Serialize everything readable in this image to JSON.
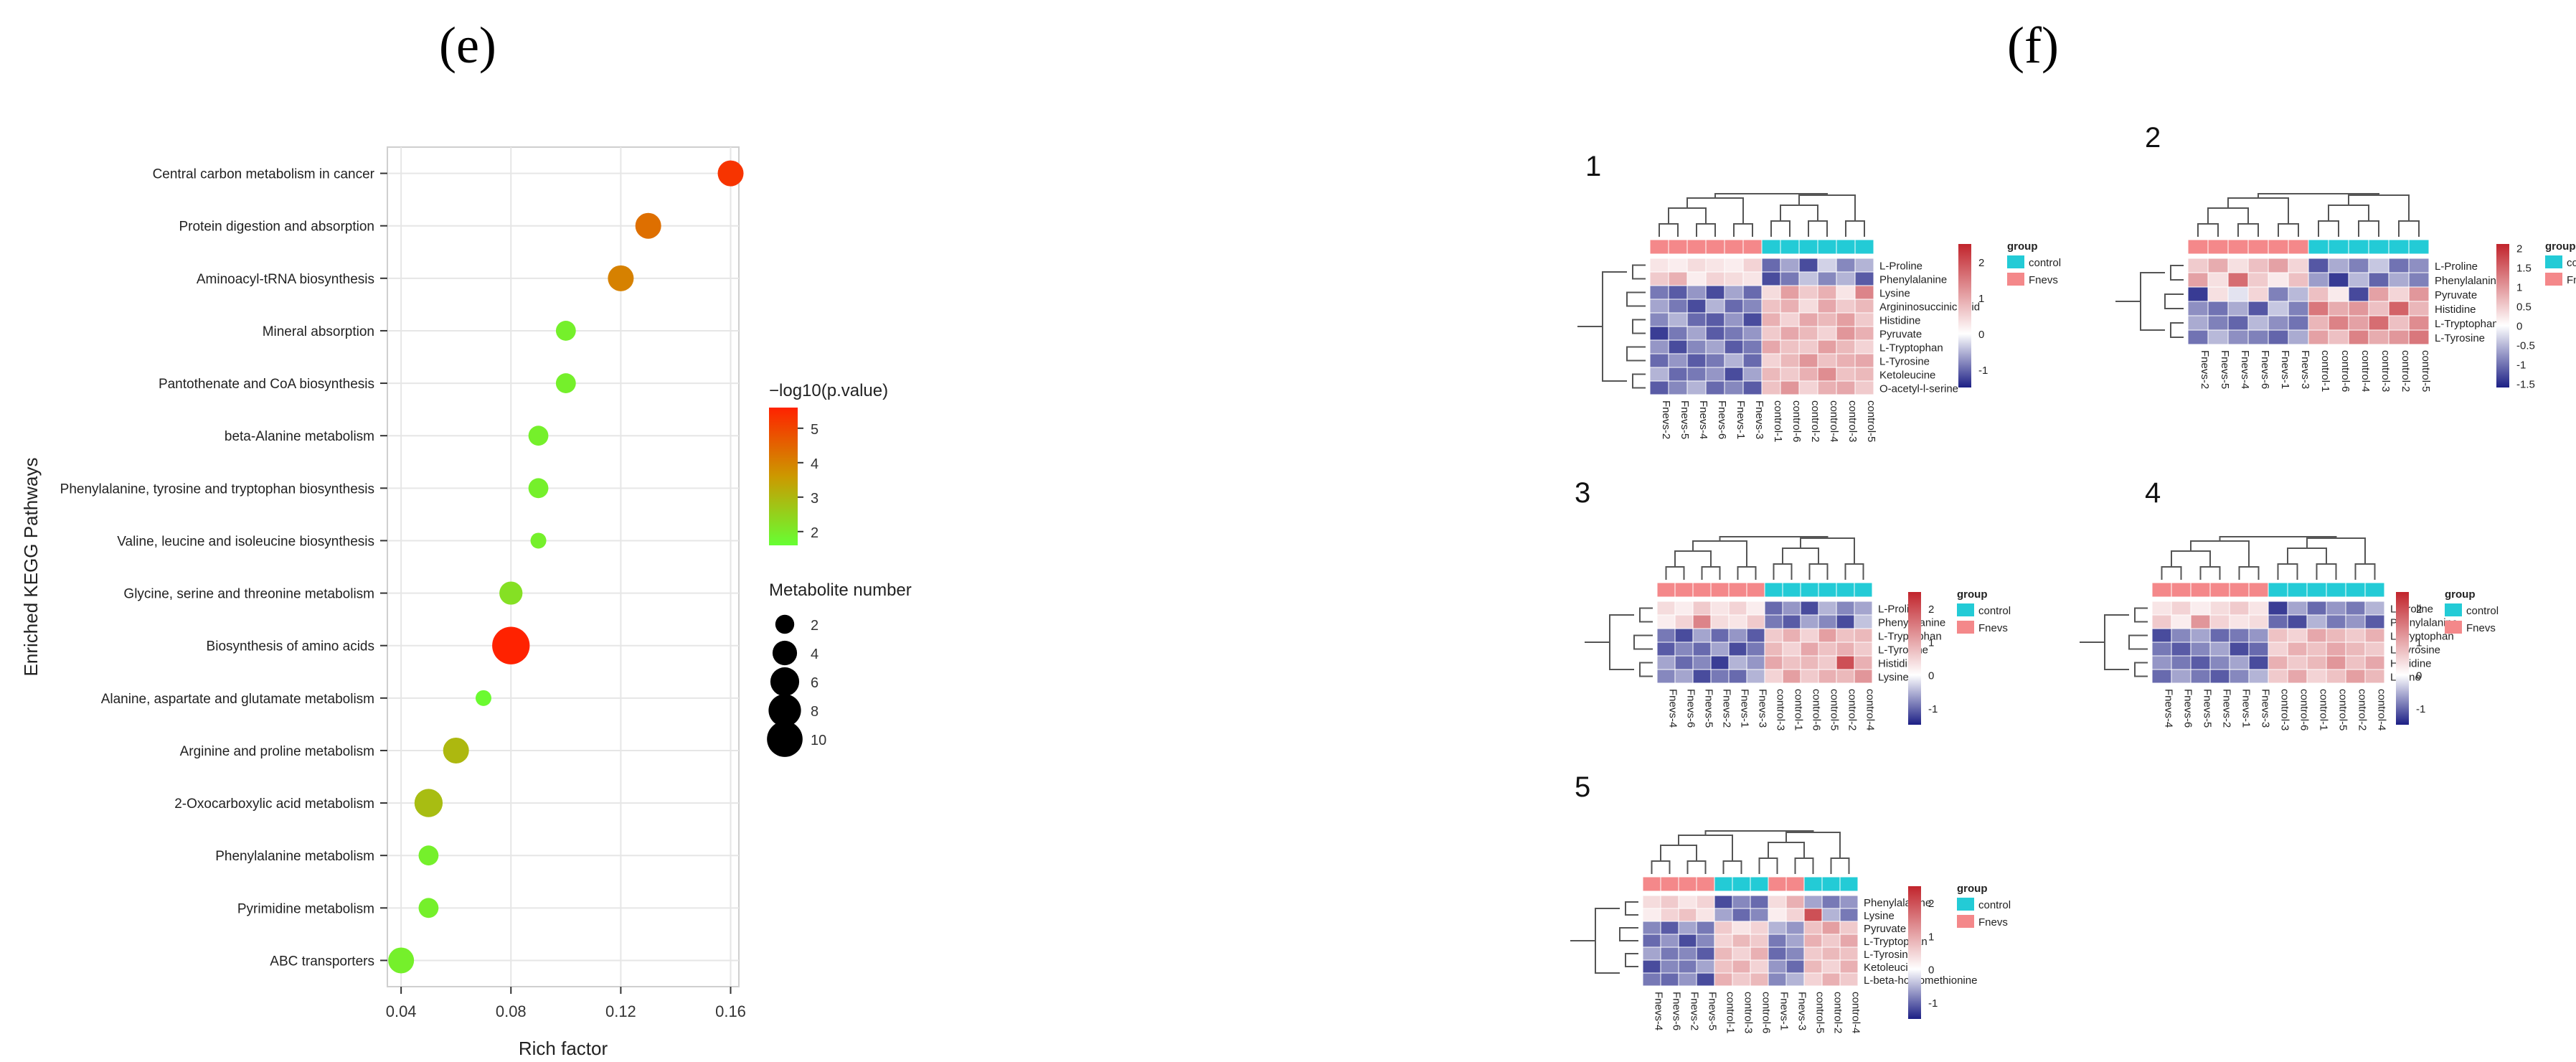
{
  "panels": {
    "e": "(e)",
    "f": "(f)"
  },
  "chart_data": [
    {
      "type": "scatter",
      "title": "",
      "xlabel": "Rich factor",
      "ylabel": "Enriched KEGG Pathways",
      "xlim": [
        0.035,
        0.163
      ],
      "xticks": [
        "0.04",
        "0.08",
        "0.12",
        "0.16"
      ],
      "grid": true,
      "categories": [
        "Central carbon metabolism in cancer",
        "Protein digestion and absorption",
        "Aminoacyl-tRNA biosynthesis",
        "Mineral absorption",
        "Pantothenate and CoA biosynthesis",
        "beta-Alanine metabolism",
        "Phenylalanine, tyrosine and tryptophan biosynthesis",
        "Valine, leucine and isoleucine biosynthesis",
        "Glycine, serine and threonine metabolism",
        "Biosynthesis of amino acids",
        "Alanine, aspartate and glutamate metabolism",
        "Arginine and proline metabolism",
        "2-Oxocarboxylic acid metabolism",
        "Phenylalanine metabolism",
        "Pyrimidine metabolism",
        "ABC transporters"
      ],
      "points": [
        {
          "x": 0.16,
          "size": 4,
          "p": 5.3
        },
        {
          "x": 0.13,
          "size": 4,
          "p": 4.3
        },
        {
          "x": 0.12,
          "size": 4,
          "p": 4.0
        },
        {
          "x": 0.1,
          "size": 2,
          "p": 1.9
        },
        {
          "x": 0.1,
          "size": 2,
          "p": 1.9
        },
        {
          "x": 0.09,
          "size": 2,
          "p": 1.9
        },
        {
          "x": 0.09,
          "size": 2,
          "p": 1.9
        },
        {
          "x": 0.09,
          "size": 1,
          "p": 1.9
        },
        {
          "x": 0.08,
          "size": 3,
          "p": 2.2
        },
        {
          "x": 0.08,
          "size": 10,
          "p": 5.8
        },
        {
          "x": 0.07,
          "size": 1,
          "p": 1.7
        },
        {
          "x": 0.06,
          "size": 4,
          "p": 3.0
        },
        {
          "x": 0.05,
          "size": 5,
          "p": 2.9
        },
        {
          "x": 0.05,
          "size": 2,
          "p": 1.9
        },
        {
          "x": 0.05,
          "size": 2,
          "p": 1.9
        },
        {
          "x": 0.04,
          "size": 4,
          "p": 1.9
        }
      ],
      "color_legend": {
        "title": "−log10(p.value)",
        "ticks": [
          "2",
          "3",
          "4",
          "5"
        ],
        "range": [
          1.6,
          5.6
        ],
        "colors": [
          "#66ff33",
          "#cc9900",
          "#ff2200"
        ]
      },
      "size_legend": {
        "title": "Metabolite number",
        "values": [
          2,
          4,
          6,
          8,
          10
        ]
      }
    },
    {
      "type": "heatmap",
      "panel": "1",
      "rows": [
        "L-Proline",
        "Phenylalanine",
        "Lysine",
        "Argininosuccinic acid",
        "Histidine",
        "Pyruvate",
        "L-Tryptophan",
        "L-Tyrosine",
        "Ketoleucine",
        "O-acetyl-l-serine"
      ],
      "cols": [
        "Fnevs-2",
        "Fnevs-5",
        "Fnevs-4",
        "Fnevs-6",
        "Fnevs-1",
        "Fnevs-3",
        "control-1",
        "control-6",
        "control-2",
        "control-4",
        "control-3",
        "control-5"
      ],
      "groups": [
        "F",
        "F",
        "F",
        "F",
        "F",
        "F",
        "C",
        "C",
        "C",
        "C",
        "C",
        "C"
      ],
      "legend_ticks": [
        "2",
        "1",
        "0",
        "-1"
      ],
      "range": [
        -1.5,
        2.5
      ],
      "values": [
        [
          0.3,
          0.2,
          0.4,
          0.3,
          0.2,
          0.5,
          -1.0,
          -0.6,
          -1.2,
          -0.3,
          -0.8,
          -0.5
        ],
        [
          0.6,
          0.9,
          0.2,
          0.5,
          0.4,
          0.3,
          -1.2,
          -0.9,
          -0.4,
          -0.8,
          -0.5,
          -1.1
        ],
        [
          -0.9,
          -1.1,
          -0.7,
          -1.2,
          -0.6,
          -1.0,
          0.4,
          1.1,
          0.6,
          0.9,
          0.3,
          1.4
        ],
        [
          -0.6,
          -0.9,
          -1.2,
          -0.5,
          -1.0,
          -0.8,
          0.7,
          0.9,
          0.4,
          1.0,
          0.6,
          0.8
        ],
        [
          -0.8,
          -0.5,
          -1.0,
          -1.1,
          -0.7,
          -1.2,
          0.9,
          0.5,
          1.0,
          0.8,
          1.1,
          0.6
        ],
        [
          -1.3,
          -0.9,
          -0.6,
          -1.1,
          -0.9,
          -0.7,
          0.6,
          1.0,
          0.8,
          0.5,
          1.2,
          0.9
        ],
        [
          -0.7,
          -1.2,
          -0.8,
          -0.6,
          -1.1,
          -0.9,
          1.0,
          0.7,
          0.6,
          1.1,
          0.8,
          0.5
        ],
        [
          -1.0,
          -0.7,
          -1.1,
          -0.9,
          -0.5,
          -1.0,
          0.5,
          0.8,
          1.2,
          0.7,
          0.9,
          1.0
        ],
        [
          -0.5,
          -1.0,
          -0.9,
          -0.7,
          -1.2,
          -0.6,
          0.8,
          0.6,
          0.9,
          1.3,
          0.7,
          0.8
        ],
        [
          -1.1,
          -0.8,
          -0.5,
          -1.0,
          -0.8,
          -1.1,
          0.7,
          1.2,
          0.5,
          0.9,
          1.0,
          0.6
        ]
      ]
    },
    {
      "type": "heatmap",
      "panel": "2",
      "rows": [
        "L-Proline",
        "Phenylalanine",
        "Pyruvate",
        "Histidine",
        "L-Tryptophan",
        "L-Tyrosine"
      ],
      "cols": [
        "Fnevs-2",
        "Fnevs-5",
        "Fnevs-4",
        "Fnevs-6",
        "Fnevs-1",
        "Fnevs-3",
        "control-1",
        "control-6",
        "control-4",
        "control-3",
        "control-2",
        "control-5"
      ],
      "groups": [
        "F",
        "F",
        "F",
        "F",
        "F",
        "F",
        "C",
        "C",
        "C",
        "C",
        "C",
        "C"
      ],
      "legend_ticks": [
        "2",
        "1.5",
        "1",
        "0.5",
        "0",
        "-0.5",
        "-1",
        "-1.5"
      ],
      "range": [
        -1.6,
        2.1
      ],
      "values": [
        [
          0.5,
          0.8,
          0.3,
          0.6,
          0.9,
          0.4,
          -1.2,
          -0.6,
          -0.9,
          -0.4,
          -1.0,
          -0.8
        ],
        [
          0.9,
          0.3,
          1.4,
          0.5,
          0.2,
          0.6,
          -0.7,
          -1.4,
          -0.5,
          -1.1,
          -0.6,
          -0.9
        ],
        [
          -1.4,
          0.3,
          -0.2,
          0.4,
          -0.9,
          -0.5,
          0.6,
          0.2,
          -1.3,
          0.9,
          0.4,
          1.0
        ],
        [
          -0.8,
          -1.0,
          -0.6,
          -1.2,
          -0.4,
          -0.9,
          1.3,
          0.8,
          1.0,
          0.6,
          1.5,
          0.7
        ],
        [
          -0.6,
          -0.9,
          -1.1,
          -0.5,
          -0.8,
          -1.0,
          0.7,
          1.2,
          0.9,
          1.4,
          0.6,
          1.1
        ],
        [
          -1.0,
          -0.5,
          -0.8,
          -0.9,
          -1.1,
          -0.6,
          0.9,
          0.6,
          1.2,
          0.8,
          1.0,
          1.3
        ]
      ]
    },
    {
      "type": "heatmap",
      "panel": "3",
      "rows": [
        "L-Proline",
        "Phenylalanine",
        "L-Tryptophan",
        "L-Tyrosine",
        "Histidine",
        "Lysine"
      ],
      "cols": [
        "Fnevs-4",
        "Fnevs-6",
        "Fnevs-5",
        "Fnevs-2",
        "Fnevs-1",
        "Fnevs-3",
        "control-3",
        "control-1",
        "control-6",
        "control-5",
        "control-2",
        "control-4"
      ],
      "groups": [
        "F",
        "F",
        "F",
        "F",
        "F",
        "F",
        "C",
        "C",
        "C",
        "C",
        "C",
        "C"
      ],
      "legend_ticks": [
        "2",
        "1",
        "0",
        "-1"
      ],
      "range": [
        -1.5,
        2.5
      ],
      "values": [
        [
          0.4,
          0.2,
          0.6,
          0.3,
          0.5,
          0.2,
          -1.0,
          -0.7,
          -1.2,
          -0.5,
          -0.8,
          -0.6
        ],
        [
          0.2,
          0.5,
          1.4,
          0.4,
          0.3,
          0.6,
          -0.9,
          -1.1,
          -0.6,
          -0.8,
          -1.2,
          -0.4
        ],
        [
          -0.9,
          -1.2,
          -0.6,
          -1.0,
          -0.7,
          -1.1,
          0.6,
          0.9,
          0.5,
          1.1,
          0.7,
          0.8
        ],
        [
          -1.1,
          -0.8,
          -1.0,
          -0.6,
          -1.2,
          -0.9,
          0.8,
          0.5,
          1.0,
          0.7,
          0.9,
          0.6
        ],
        [
          -0.6,
          -1.0,
          -0.8,
          -1.3,
          -0.5,
          -0.7,
          1.0,
          0.7,
          0.8,
          0.6,
          2.0,
          0.9
        ],
        [
          -0.8,
          -0.6,
          -1.2,
          -0.9,
          -1.0,
          -0.5,
          0.5,
          1.1,
          0.6,
          0.9,
          0.8,
          1.2
        ]
      ]
    },
    {
      "type": "heatmap",
      "panel": "4",
      "rows": [
        "L-Proline",
        "Phenylalanine",
        "L-Tryptophan",
        "L-Tyrosine",
        "Histidine",
        "Lysine"
      ],
      "cols": [
        "Fnevs-4",
        "Fnevs-6",
        "Fnevs-5",
        "Fnevs-2",
        "Fnevs-1",
        "Fnevs-3",
        "control-3",
        "control-6",
        "control-1",
        "control-5",
        "control-2",
        "control-4"
      ],
      "groups": [
        "F",
        "F",
        "F",
        "F",
        "F",
        "F",
        "C",
        "C",
        "C",
        "C",
        "C",
        "C"
      ],
      "legend_ticks": [
        "2",
        "1",
        "0",
        "-1"
      ],
      "range": [
        -1.5,
        2.5
      ],
      "values": [
        [
          0.3,
          0.5,
          0.2,
          0.4,
          0.6,
          0.3,
          -1.3,
          -0.6,
          -1.0,
          -0.7,
          -0.9,
          -0.5
        ],
        [
          0.6,
          0.2,
          1.2,
          0.5,
          0.3,
          0.4,
          -1.0,
          -1.2,
          -0.5,
          -0.9,
          -0.7,
          -1.1
        ],
        [
          -1.2,
          -0.8,
          -0.6,
          -1.0,
          -0.9,
          -0.7,
          0.7,
          0.5,
          1.0,
          0.8,
          0.6,
          0.9
        ],
        [
          -0.9,
          -1.1,
          -0.8,
          -0.6,
          -1.2,
          -1.0,
          0.5,
          0.9,
          0.7,
          1.0,
          0.8,
          0.6
        ],
        [
          -0.7,
          -0.9,
          -1.1,
          -0.8,
          -0.6,
          -1.2,
          0.9,
          0.6,
          0.8,
          1.2,
          0.7,
          1.0
        ],
        [
          -1.0,
          -0.6,
          -0.9,
          -1.1,
          -0.8,
          -0.5,
          0.6,
          1.0,
          0.5,
          0.7,
          1.1,
          0.8
        ]
      ]
    },
    {
      "type": "heatmap",
      "panel": "5",
      "rows": [
        "Phenylalanine",
        "Lysine",
        "Pyruvate",
        "L-Tryptophan",
        "L-Tyrosine",
        "Ketoleucine",
        "L-beta-homomethionine"
      ],
      "cols": [
        "Fnevs-4",
        "Fnevs-6",
        "Fnevs-2",
        "Fnevs-5",
        "control-1",
        "control-3",
        "control-6",
        "Fnevs-1",
        "Fnevs-3",
        "control-5",
        "control-2",
        "control-4"
      ],
      "groups": [
        "F",
        "F",
        "F",
        "F",
        "C",
        "C",
        "C",
        "F",
        "F",
        "C",
        "C",
        "C"
      ],
      "legend_ticks": [
        "2",
        "1",
        "0",
        "-1"
      ],
      "range": [
        -1.5,
        2.5
      ],
      "values": [
        [
          0.4,
          0.6,
          0.3,
          0.5,
          -1.2,
          -0.8,
          -1.0,
          0.4,
          0.9,
          -0.6,
          -0.9,
          -0.7
        ],
        [
          0.2,
          0.5,
          0.7,
          0.3,
          -0.6,
          -1.0,
          -0.8,
          0.2,
          0.5,
          2.0,
          -0.5,
          -0.9
        ],
        [
          -0.8,
          -1.1,
          -0.6,
          -0.9,
          0.6,
          0.3,
          0.5,
          -0.5,
          -0.7,
          0.7,
          1.1,
          0.6
        ],
        [
          -1.0,
          -0.7,
          -1.2,
          -0.8,
          0.5,
          0.8,
          0.6,
          -0.9,
          -0.6,
          0.9,
          0.6,
          1.0
        ],
        [
          -0.6,
          -0.9,
          -0.8,
          -1.1,
          0.8,
          0.5,
          0.9,
          -1.0,
          -0.8,
          0.6,
          0.8,
          0.7
        ],
        [
          -1.2,
          -0.8,
          -0.9,
          -0.6,
          0.7,
          0.9,
          0.5,
          -0.7,
          -1.0,
          0.8,
          0.5,
          0.9
        ],
        [
          -0.9,
          -1.0,
          -0.7,
          -1.2,
          0.9,
          0.6,
          0.8,
          -0.8,
          -0.5,
          0.5,
          0.9,
          0.6
        ]
      ],
      "legend": {
        "title": "group",
        "items": [
          "control",
          "Fnevs"
        ]
      }
    }
  ],
  "heatmap_legend": {
    "title": "group",
    "items": [
      "control",
      "Fnevs"
    ],
    "colors": {
      "control": "#23cbd6",
      "Fnevs": "#f4888a"
    }
  },
  "heatmap_colors": {
    "low": "#1c1f85",
    "mid": "#ffffff",
    "high": "#c1242c"
  }
}
